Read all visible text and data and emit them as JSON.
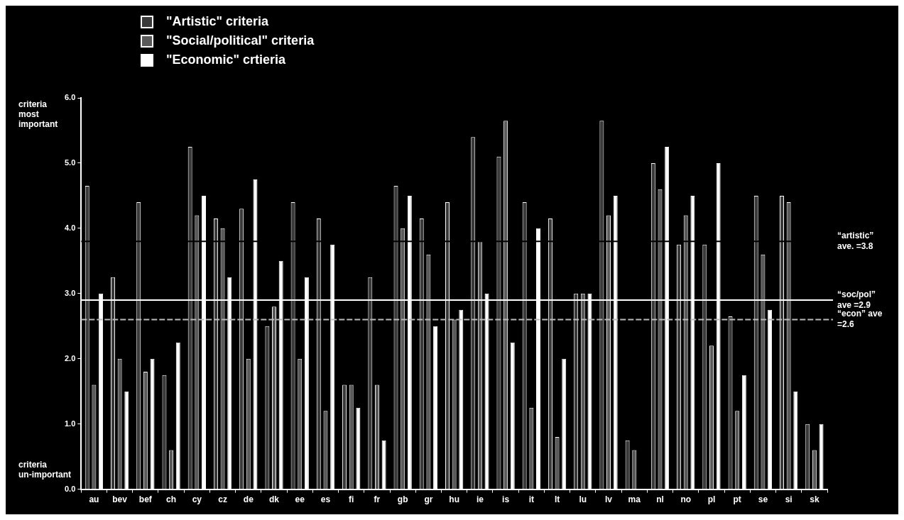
{
  "chart_data": {
    "type": "bar",
    "categories": [
      "au",
      "bev",
      "bef",
      "ch",
      "cy",
      "cz",
      "de",
      "dk",
      "ee",
      "es",
      "fi",
      "fr",
      "gb",
      "gr",
      "hu",
      "ie",
      "is",
      "it",
      "lt",
      "lu",
      "lv",
      "ma",
      "nl",
      "no",
      "pl",
      "pt",
      "se",
      "si",
      "sk"
    ],
    "series": [
      {
        "name": "\"Artistic\" criteria",
        "color": "#3a3a3a",
        "values": [
          4.65,
          3.25,
          4.4,
          1.75,
          5.25,
          4.15,
          4.3,
          2.5,
          4.4,
          4.15,
          1.6,
          3.25,
          4.65,
          4.15,
          4.4,
          5.4,
          5.1,
          4.4,
          4.15,
          3.0,
          5.65,
          0.75,
          5.0,
          3.75,
          3.75,
          2.65,
          4.5,
          4.5,
          1.0
        ]
      },
      {
        "name": "\"Social/political\" criteria",
        "color": "#5a5a5a",
        "values": [
          1.6,
          2.0,
          1.8,
          0.6,
          4.2,
          4.0,
          2.0,
          2.8,
          2.0,
          1.2,
          1.6,
          1.6,
          4.0,
          3.6,
          2.6,
          3.8,
          5.65,
          1.25,
          0.8,
          3.0,
          4.2,
          0.6,
          4.6,
          4.2,
          2.2,
          1.2,
          3.6,
          4.4,
          0.6
        ]
      },
      {
        "name": "\"Economic\" crtieria",
        "color": "#ffffff",
        "values": [
          3.0,
          1.5,
          2.0,
          2.25,
          4.5,
          3.25,
          4.75,
          3.5,
          3.25,
          3.75,
          1.25,
          0.75,
          4.5,
          2.5,
          2.75,
          3.0,
          2.25,
          4.0,
          2.0,
          3.0,
          4.5,
          null,
          5.25,
          4.5,
          5.0,
          1.75,
          2.75,
          1.5,
          1.0
        ]
      }
    ],
    "ylim": [
      0,
      6
    ],
    "yticks": [
      {
        "value": 0,
        "label": "0.0"
      },
      {
        "value": 1,
        "label": "1.0"
      },
      {
        "value": 2,
        "label": "2.0"
      },
      {
        "value": 3,
        "label": "3.0"
      },
      {
        "value": 4,
        "label": "4.0"
      },
      {
        "value": 5,
        "label": "5.0"
      },
      {
        "value": 6,
        "label": "6.0"
      }
    ],
    "ref_lines": [
      {
        "axis": "y",
        "value": 3.8,
        "label": "“artistic” ave. =3.8",
        "color": "#000000",
        "line_style": "solid"
      },
      {
        "axis": "y",
        "value": 2.9,
        "label": "“soc/pol” ave =2.9",
        "color": "#ffffff",
        "line_style": "solid"
      },
      {
        "axis": "y",
        "value": 2.6,
        "label": "“econ” ave =2.6",
        "color": "#bbbbbb",
        "line_style": "dashed"
      }
    ],
    "annotations": [
      "criteria most important",
      "criteria un-important"
    ],
    "legend": "top left"
  }
}
